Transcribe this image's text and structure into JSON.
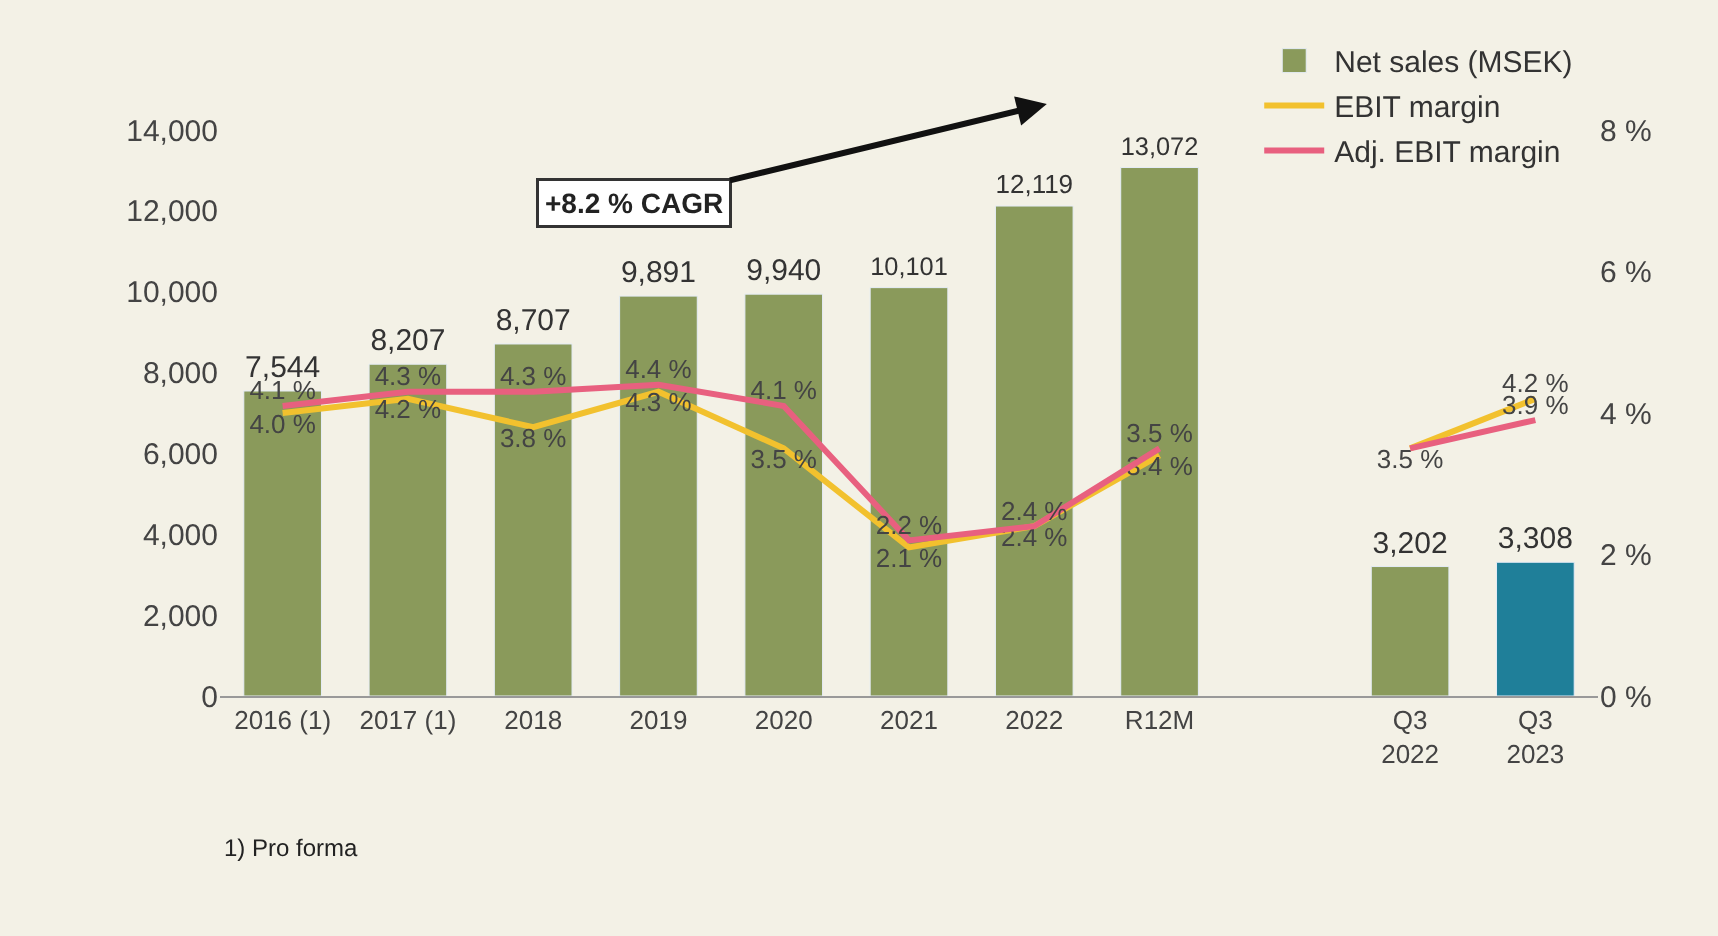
{
  "chart_data": {
    "type": "bar",
    "categories": [
      "2016 (1)",
      "2017 (1)",
      "2018",
      "2019",
      "2020",
      "2021",
      "2022",
      "R12M",
      null,
      "Q3\n2022",
      "Q3\n2023"
    ],
    "series": [
      {
        "name": "Net sales (MSEK)",
        "colors": [
          "#8a9a5b",
          "#8a9a5b",
          "#8a9a5b",
          "#8a9a5b",
          "#8a9a5b",
          "#8a9a5b",
          "#8a9a5b",
          "#8a9a5b",
          "#8a9a5b",
          "#8a9a5b",
          "#1f7f99"
        ],
        "values": [
          7544,
          8207,
          8707,
          9891,
          9940,
          10101,
          12119,
          13072,
          null,
          3202,
          3308
        ],
        "value_labels": [
          "7,544",
          "8,207",
          "8,707",
          "9,891",
          "9,940",
          "10,101",
          "12,119",
          "13,072",
          null,
          "3,202",
          "3,308"
        ]
      },
      {
        "name": "EBIT margin",
        "type": "line",
        "axis": "y2",
        "color": "#f2c12e",
        "values": [
          4.0,
          4.2,
          3.8,
          4.3,
          3.5,
          2.1,
          2.4,
          3.4,
          null,
          3.5,
          4.2
        ],
        "value_labels": [
          "4.0 %",
          "4.2 %",
          "3.8 %",
          "4.3 %",
          "3.5 %",
          "2.1 %",
          "2.4 %",
          "3.4 %",
          null,
          "3.5 %",
          "4.2 %"
        ]
      },
      {
        "name": "Adj. EBIT margin",
        "type": "line",
        "axis": "y2",
        "color": "#e8607f",
        "values": [
          4.1,
          4.3,
          4.3,
          4.4,
          4.1,
          2.2,
          2.4,
          3.5,
          null,
          3.5,
          3.9
        ],
        "value_labels": [
          "4.1 %",
          "4.3 %",
          "4.3 %",
          "4.4 %",
          "4.1 %",
          "2.2 %",
          "2.4 %",
          "3.5 %",
          null,
          null,
          "3.9 %"
        ]
      }
    ],
    "ylim": [
      0,
      14000
    ],
    "yticks": [
      {
        "value": 0,
        "label": "0"
      },
      {
        "value": 2000,
        "label": "2,000"
      },
      {
        "value": 4000,
        "label": "4,000"
      },
      {
        "value": 6000,
        "label": "6,000"
      },
      {
        "value": 8000,
        "label": "8,000"
      },
      {
        "value": 10000,
        "label": "10,000"
      },
      {
        "value": 12000,
        "label": "12,000"
      },
      {
        "value": 14000,
        "label": "14,000"
      }
    ],
    "y2lim": [
      0,
      8
    ],
    "y2ticks": [
      {
        "value": 0,
        "label": "0 %"
      },
      {
        "value": 2,
        "label": "2 %"
      },
      {
        "value": 4,
        "label": "4 %"
      },
      {
        "value": 6,
        "label": "6 %"
      },
      {
        "value": 8,
        "label": "8 %"
      }
    ],
    "annotations": [
      "+8.2 % CAGR",
      "1) Pro forma"
    ],
    "legend": "top right",
    "grid": false,
    "marker": "none",
    "line_style": "solid"
  }
}
